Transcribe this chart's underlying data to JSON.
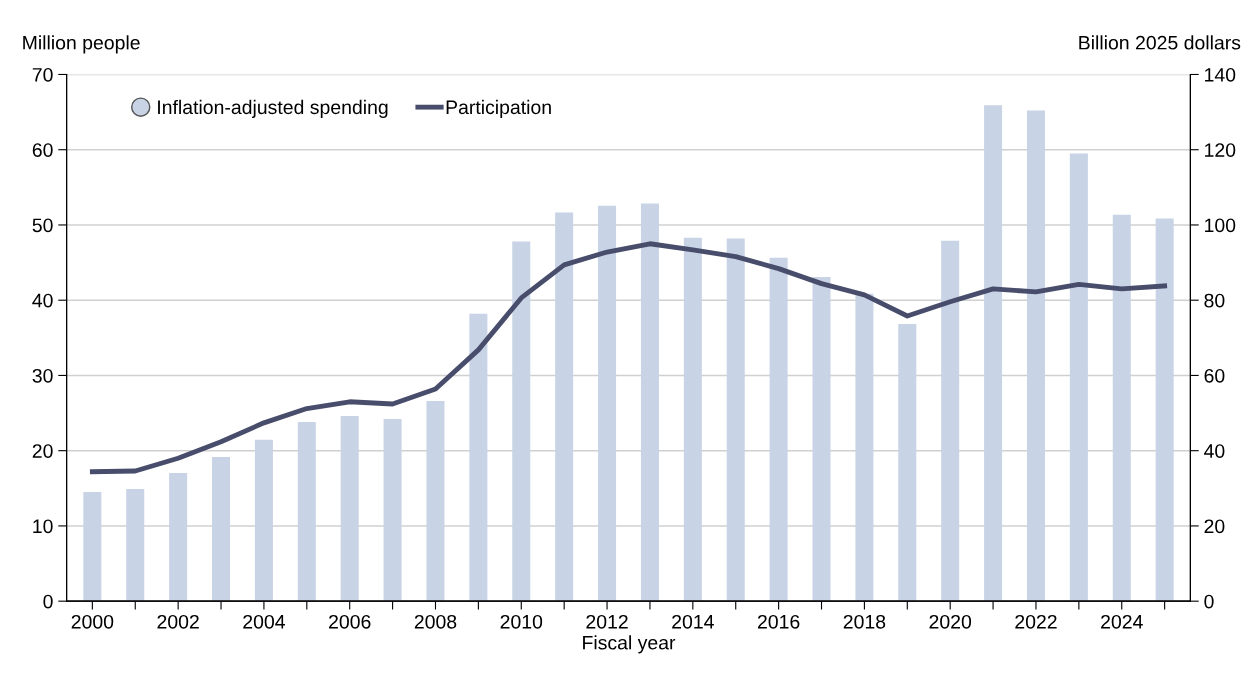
{
  "chart_data": {
    "type": "bar",
    "xlabel": "Fiscal year",
    "ylabel": "Million people",
    "y2label": "Billion 2025 dollars",
    "x": [
      2000,
      2001,
      2002,
      2003,
      2004,
      2005,
      2006,
      2007,
      2008,
      2009,
      2010,
      2011,
      2012,
      2013,
      2014,
      2015,
      2016,
      2017,
      2018,
      2019,
      2020,
      2021,
      2022,
      2023,
      2024,
      2025
    ],
    "series": [
      {
        "name": "Inflation-adjusted spending",
        "axis": "y2",
        "color": "#c8d3e6",
        "marker": "circle",
        "values": [
          29.0,
          29.8,
          34.1,
          38.3,
          42.9,
          47.6,
          49.2,
          48.4,
          53.2,
          76.4,
          95.6,
          103.3,
          105.1,
          105.7,
          96.6,
          96.4,
          91.3,
          86.2,
          81.7,
          73.7,
          95.8,
          131.8,
          130.4,
          119.0,
          102.7,
          101.7
        ]
      },
      {
        "name": "Participation",
        "type": "line",
        "axis": "y",
        "color": "#474d6b",
        "line_style": "solid",
        "values": [
          17.2,
          17.3,
          19.0,
          21.2,
          23.7,
          25.6,
          26.5,
          26.2,
          28.2,
          33.4,
          40.3,
          44.7,
          46.4,
          47.5,
          46.7,
          45.8,
          44.2,
          42.2,
          40.7,
          37.9,
          39.8,
          41.5,
          41.1,
          42.1,
          41.5,
          41.9
        ]
      }
    ],
    "xlim": [
      1999.4,
      2025.6
    ],
    "xticks": [
      2000,
      {
        "value": 2001,
        "label": null
      },
      2002,
      {
        "value": 2003,
        "label": null
      },
      2004,
      {
        "value": 2005,
        "label": null
      },
      2006,
      {
        "value": 2007,
        "label": null
      },
      2008,
      {
        "value": 2009,
        "label": null
      },
      2010,
      {
        "value": 2011,
        "label": null
      },
      2012,
      {
        "value": 2013,
        "label": null
      },
      2014,
      {
        "value": 2015,
        "label": null
      },
      2016,
      {
        "value": 2017,
        "label": null
      },
      2018,
      {
        "value": 2019,
        "label": null
      },
      2020,
      {
        "value": 2021,
        "label": null
      },
      2022,
      {
        "value": 2023,
        "label": null
      },
      2024,
      {
        "value": 2025,
        "label": null
      }
    ],
    "ylim": [
      0,
      70
    ],
    "yticks": [
      0,
      10,
      20,
      30,
      40,
      50,
      60,
      70
    ],
    "y2lim": [
      0,
      140
    ],
    "y2ticks": [
      0,
      20,
      40,
      60,
      80,
      100,
      120,
      140
    ],
    "grid": "y",
    "legend": "top left"
  }
}
